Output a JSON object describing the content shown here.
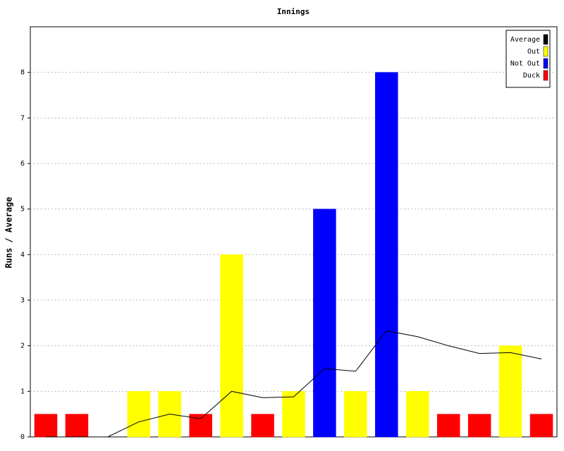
{
  "chart_data": {
    "type": "bar",
    "title": "Innings",
    "y_label": "Runs / Average",
    "categories": [
      null,
      null,
      null,
      null,
      null,
      null,
      null,
      null,
      null,
      null,
      null,
      null,
      null,
      null,
      null,
      null,
      null
    ],
    "series": [
      {
        "name": "Average",
        "type": "line",
        "color": "#000000",
        "values": [
          0,
          0,
          0,
          0.33,
          0.5,
          0.4,
          1,
          0.86,
          0.88,
          1.5,
          1.44,
          2.33,
          2.2,
          2,
          1.83,
          1.85,
          1.71
        ]
      },
      {
        "name": "Out",
        "type": "bar",
        "color": "#ffff00",
        "values": [
          null,
          null,
          null,
          1,
          1,
          null,
          4,
          null,
          1,
          null,
          1,
          null,
          1,
          null,
          null,
          2,
          null
        ]
      },
      {
        "name": "Not Out",
        "type": "bar",
        "color": "#0000ff",
        "values": [
          null,
          null,
          0,
          null,
          null,
          null,
          null,
          null,
          null,
          5,
          null,
          8,
          null,
          null,
          null,
          null,
          null
        ]
      },
      {
        "name": "Duck",
        "type": "bar",
        "color": "#ff0000",
        "values": [
          0.5,
          0.5,
          null,
          null,
          null,
          0.5,
          null,
          0.5,
          null,
          null,
          null,
          null,
          null,
          0.5,
          0.5,
          null,
          0.5
        ]
      }
    ],
    "ylim": [
      0,
      9
    ],
    "yticks": [
      0,
      1,
      2,
      3,
      4,
      5,
      6,
      7,
      8
    ],
    "grid": true,
    "legend": "top-right"
  }
}
